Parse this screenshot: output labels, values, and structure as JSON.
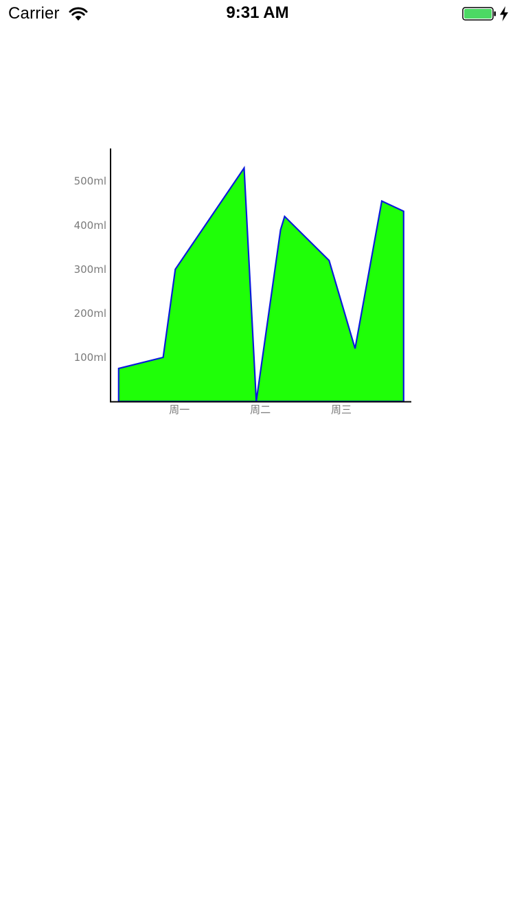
{
  "status_bar": {
    "carrier": "Carrier",
    "time": "9:31 AM",
    "wifi_icon": "wifi-icon",
    "battery_icon": "battery-full-icon",
    "charge_icon": "charging-bolt-icon",
    "battery_color": "#4cd964"
  },
  "chart_data": {
    "type": "area",
    "title": "",
    "xlabel": "",
    "ylabel": "",
    "x": [
      0.1,
      0.65,
      0.8,
      1.65,
      1.8,
      2.1,
      2.15,
      2.7,
      3.02,
      3.35,
      3.62
    ],
    "values": [
      75,
      100,
      300,
      530,
      0,
      390,
      420,
      320,
      120,
      455,
      432
    ],
    "y_ticks": [
      {
        "value": 100,
        "label": "100ml"
      },
      {
        "value": 200,
        "label": "200ml"
      },
      {
        "value": 300,
        "label": "300ml"
      },
      {
        "value": 400,
        "label": "400ml"
      },
      {
        "value": 500,
        "label": "500ml"
      }
    ],
    "x_ticks": [
      {
        "value": 0.85,
        "label": "周一"
      },
      {
        "value": 1.85,
        "label": "周二"
      },
      {
        "value": 2.85,
        "label": "周三"
      }
    ],
    "xlim": [
      0,
      3.7
    ],
    "ylim": [
      0,
      575
    ],
    "grid": false,
    "fill_color": "#1fff08",
    "line_color": "#0a1adb",
    "axis_color": "#000000",
    "tick_label_color": "#7a7a7a"
  }
}
